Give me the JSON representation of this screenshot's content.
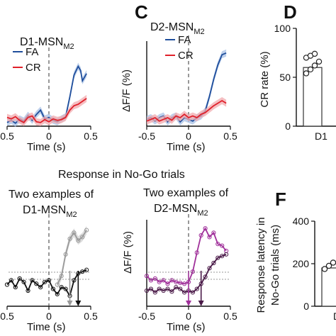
{
  "header": {
    "section_title": "Response in No-Go trials"
  },
  "panels": [
    {
      "id": "B",
      "letter": "",
      "title": "D1-MSN",
      "title_sub": "M2"
    },
    {
      "id": "C",
      "letter": "C",
      "title": "D2-MSN",
      "title_sub": "M2"
    },
    {
      "id": "D",
      "letter": "D"
    },
    {
      "id": "E",
      "letter": "",
      "title_line1": "Two examples of",
      "title_line2": "D1-MSN",
      "title_sub": "M2"
    },
    {
      "id": "E2",
      "letter": "",
      "title_line1": "Two examples of",
      "title_line2": "D2-MSN",
      "title_sub": "M2"
    },
    {
      "id": "F",
      "letter": "F"
    }
  ],
  "colors": {
    "fa": "#1f4e9c",
    "cr": "#e0202a",
    "fa_band": "#a9c1e6",
    "cr_band": "#f2a9ad",
    "gray": "#9a9a9a",
    "black": "#111111",
    "purple": "#a0309a",
    "dark_purple": "#4a1a48"
  },
  "chart_data": [
    {
      "panel": "B",
      "type": "line",
      "title": "D1-MSNM2",
      "xlabel": "Time (s)",
      "ylabel": "",
      "xlim": [
        -0.5,
        0.5
      ],
      "ylim": [
        0,
        1
      ],
      "xticks": [
        "0.5",
        "0",
        "0.5"
      ],
      "legend": {
        "placement": "top-left",
        "entries": [
          "FA",
          "CR"
        ]
      },
      "event_line_x": 0,
      "series": [
        {
          "name": "FA",
          "color": "fa",
          "x": [
            -0.5,
            -0.45,
            -0.4,
            -0.35,
            -0.3,
            -0.25,
            -0.2,
            -0.15,
            -0.1,
            -0.05,
            0,
            0.05,
            0.1,
            0.15,
            0.2,
            0.25,
            0.3,
            0.35,
            0.38,
            0.4,
            0.45
          ],
          "y": [
            0.05,
            0.08,
            0.04,
            0.1,
            0.07,
            0.15,
            0.08,
            0.16,
            0.22,
            0.1,
            0.12,
            0.08,
            0.06,
            0.1,
            0.13,
            0.4,
            0.7,
            0.82,
            0.76,
            0.62,
            0.72
          ]
        },
        {
          "name": "CR",
          "color": "cr",
          "x": [
            -0.5,
            -0.45,
            -0.4,
            -0.35,
            -0.3,
            -0.25,
            -0.2,
            -0.15,
            -0.1,
            -0.05,
            0,
            0.05,
            0.1,
            0.15,
            0.2,
            0.25,
            0.3,
            0.35,
            0.4,
            0.45
          ],
          "y": [
            0.12,
            0.1,
            0.13,
            0.08,
            0.05,
            0.12,
            0.14,
            0.06,
            0.05,
            0.09,
            0.06,
            0.1,
            0.08,
            0.09,
            0.12,
            0.22,
            0.28,
            0.3,
            0.34,
            0.38
          ]
        }
      ]
    },
    {
      "panel": "C",
      "type": "line",
      "title": "D2-MSNM2",
      "xlabel": "Time (s)",
      "ylabel": "ΔF/F (%)",
      "xlim": [
        -0.5,
        0.5
      ],
      "ylim": [
        0,
        1
      ],
      "xticks": [
        "-0.5",
        "0",
        "0.5"
      ],
      "legend": {
        "placement": "top-right",
        "entries": [
          "FA",
          "CR"
        ]
      },
      "event_line_x": 0,
      "series": [
        {
          "name": "FA",
          "color": "fa",
          "x": [
            -0.5,
            -0.45,
            -0.4,
            -0.35,
            -0.3,
            -0.25,
            -0.2,
            -0.15,
            -0.1,
            -0.05,
            0,
            0.05,
            0.1,
            0.15,
            0.2,
            0.25,
            0.3,
            0.35,
            0.4,
            0.45
          ],
          "y": [
            0.08,
            0.1,
            0.06,
            0.1,
            0.12,
            0.05,
            0.1,
            0.12,
            0.05,
            0.1,
            0.08,
            0.06,
            0.1,
            0.12,
            0.18,
            0.35,
            0.55,
            0.72,
            0.84,
            0.86
          ]
        },
        {
          "name": "CR",
          "color": "cr",
          "x": [
            -0.5,
            -0.45,
            -0.4,
            -0.35,
            -0.3,
            -0.25,
            -0.2,
            -0.15,
            -0.1,
            -0.05,
            0,
            0.05,
            0.1,
            0.15,
            0.2,
            0.25,
            0.3,
            0.35,
            0.4,
            0.45
          ],
          "y": [
            0.06,
            0.08,
            0.1,
            0.06,
            0.08,
            0.1,
            0.07,
            0.12,
            0.1,
            0.14,
            0.1,
            0.12,
            0.1,
            0.14,
            0.16,
            0.2,
            0.24,
            0.27,
            0.3,
            0.27
          ]
        }
      ]
    },
    {
      "panel": "D",
      "type": "bar",
      "ylabel": "CR rate (%)",
      "xlabel": "",
      "ylim": [
        0,
        100
      ],
      "yticks": [
        0,
        50,
        100
      ],
      "categories": [
        "D1"
      ],
      "values": [
        60
      ],
      "points": [
        54,
        58,
        62,
        66,
        70,
        72,
        74
      ]
    },
    {
      "panel": "E",
      "type": "line",
      "xlabel": "Time (s)",
      "ylabel": "",
      "xlim": [
        -0.5,
        0.5
      ],
      "ylim": [
        0,
        1
      ],
      "xticks": [
        "0.5",
        "0",
        "0.5"
      ],
      "event_line_x": 0,
      "series": [
        {
          "name": "",
          "color": "gray",
          "x": [
            0.1,
            0.15,
            0.2,
            0.25,
            0.3,
            0.35,
            0.4,
            0.45
          ],
          "y": [
            0.25,
            0.35,
            0.6,
            0.78,
            0.85,
            0.76,
            0.8,
            0.88
          ]
        },
        {
          "name": "",
          "color": "black",
          "x": [
            -0.5,
            -0.45,
            -0.4,
            -0.35,
            -0.3,
            -0.25,
            -0.2,
            -0.15,
            -0.1,
            -0.05,
            0,
            0.05,
            0.1,
            0.15,
            0.2,
            0.25,
            0.3,
            0.35,
            0.4,
            0.45
          ],
          "y": [
            0.25,
            0.3,
            0.22,
            0.32,
            0.28,
            0.18,
            0.3,
            0.26,
            0.22,
            0.28,
            0.3,
            0.2,
            0.14,
            0.22,
            0.2,
            0.12,
            0.3,
            0.38,
            0.4,
            0.42
          ]
        }
      ],
      "latency_markers": [
        {
          "x": 0.25,
          "color": "gray"
        },
        {
          "x": 0.35,
          "color": "black"
        }
      ]
    },
    {
      "panel": "E2",
      "type": "line",
      "xlabel": "Time (s)",
      "ylabel": "ΔF/F (%)",
      "xlim": [
        -0.5,
        0.5
      ],
      "ylim": [
        0,
        1
      ],
      "xticks": [
        "-0.5",
        "0",
        "0.5"
      ],
      "event_line_x": 0,
      "series": [
        {
          "name": "",
          "color": "purple",
          "x": [
            -0.5,
            -0.45,
            -0.4,
            -0.35,
            -0.3,
            -0.25,
            -0.2,
            -0.15,
            -0.1,
            -0.05,
            0,
            0.05,
            0.1,
            0.15,
            0.2,
            0.25,
            0.3,
            0.35,
            0.4,
            0.45
          ],
          "y": [
            0.35,
            0.3,
            0.32,
            0.28,
            0.3,
            0.26,
            0.3,
            0.28,
            0.27,
            0.26,
            0.28,
            0.4,
            0.62,
            0.82,
            0.9,
            0.8,
            0.85,
            0.72,
            0.7,
            0.64
          ]
        },
        {
          "name": "",
          "color": "dark_purple",
          "x": [
            -0.5,
            -0.45,
            -0.4,
            -0.35,
            -0.3,
            -0.25,
            -0.2,
            -0.15,
            -0.1,
            -0.05,
            0,
            0.05,
            0.1,
            0.15,
            0.2,
            0.25,
            0.3,
            0.35,
            0.4,
            0.45
          ],
          "y": [
            0.18,
            0.2,
            0.16,
            0.2,
            0.18,
            0.2,
            0.17,
            0.22,
            0.2,
            0.16,
            0.18,
            0.16,
            0.2,
            0.26,
            0.34,
            0.44,
            0.5,
            0.56,
            0.58,
            0.6
          ]
        }
      ],
      "latency_markers": [
        {
          "x": 0.0,
          "color": "purple"
        },
        {
          "x": 0.15,
          "color": "dark_purple"
        }
      ]
    },
    {
      "panel": "F",
      "type": "bar",
      "ylabel_line1": "Response latency in",
      "ylabel_line2": "No-Go trials (ms)",
      "ylim": [
        0,
        400
      ],
      "yticks": [
        0,
        200,
        400
      ],
      "categories": [
        "D"
      ],
      "values": [
        180
      ],
      "points": [
        175,
        190,
        205
      ]
    }
  ]
}
